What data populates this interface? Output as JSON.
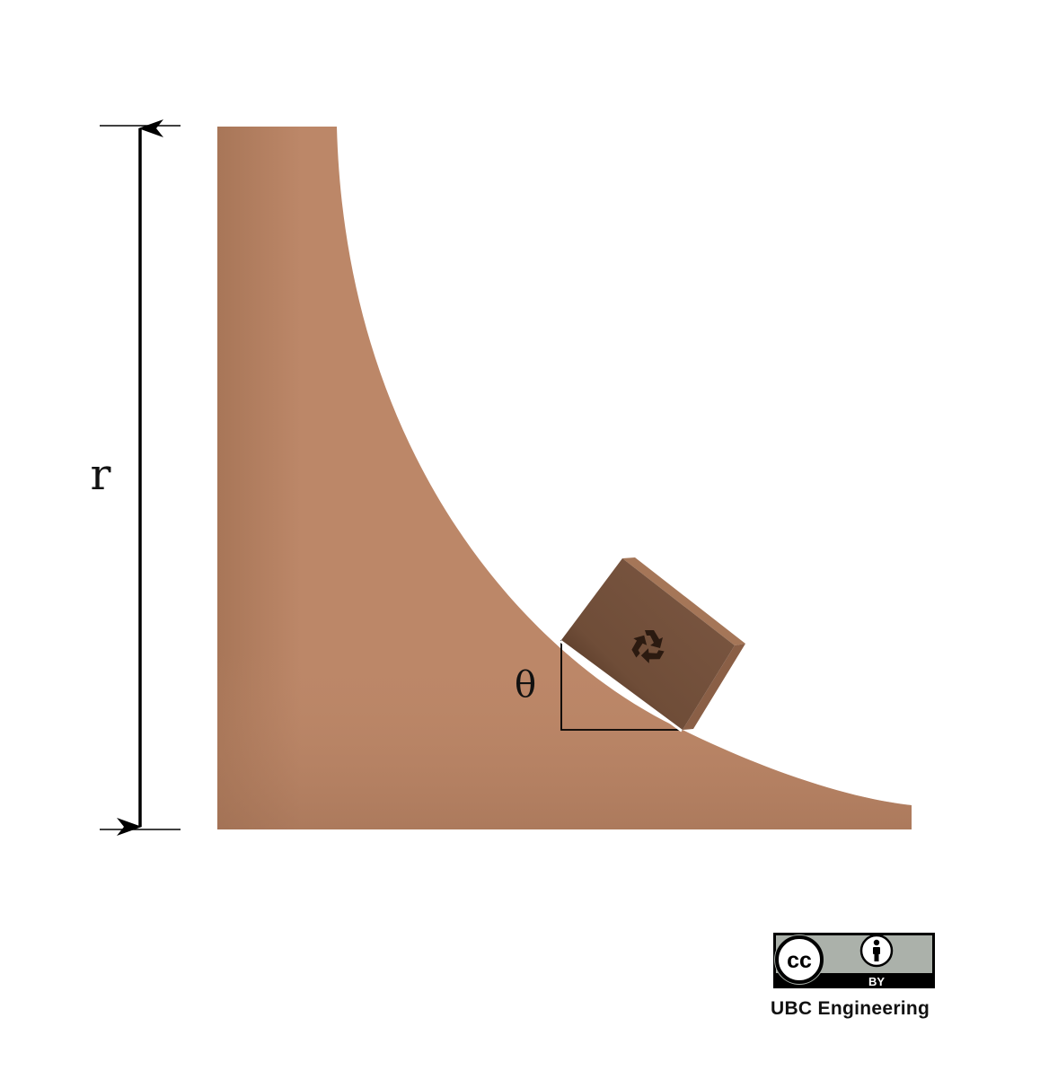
{
  "diagram": {
    "height_label": "r",
    "angle_label": "θ",
    "colors": {
      "ramp": "#bc8768",
      "ramp_shadow": "#a57558",
      "box_face": "#7a5640",
      "box_side": "#9a6a4e",
      "box_top": "#a87a5c",
      "recycle_icon": "#2a1a10",
      "dimension_line": "#000000"
    },
    "box_icon": "recycle-icon"
  },
  "license": {
    "cc_label": "cc",
    "by_label": "BY",
    "credit": "UBC Engineering",
    "colors": {
      "badge_bg": "#abb1aa",
      "badge_border": "#000000"
    }
  }
}
